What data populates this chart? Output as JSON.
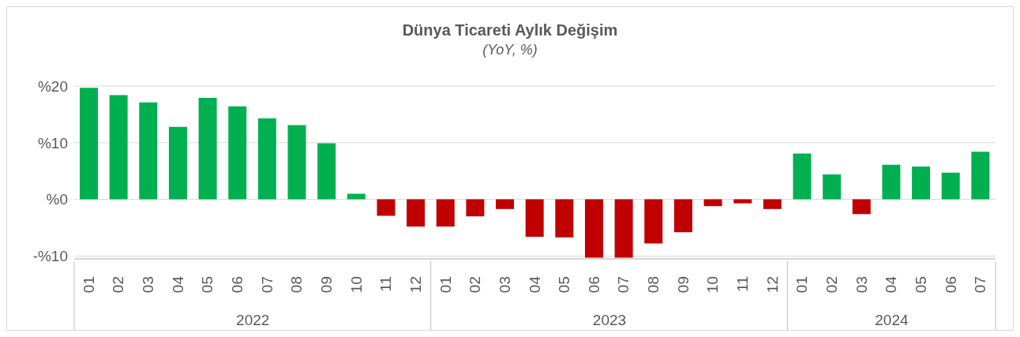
{
  "chart_data": {
    "type": "bar",
    "title": "Dünya Ticareti Aylık Değişim",
    "subtitle": "(YoY, %)",
    "categories": [
      "01",
      "02",
      "03",
      "04",
      "05",
      "06",
      "07",
      "08",
      "09",
      "10",
      "11",
      "12",
      "01",
      "02",
      "03",
      "04",
      "05",
      "06",
      "07",
      "08",
      "09",
      "10",
      "11",
      "12",
      "01",
      "02",
      "03",
      "04",
      "05",
      "06",
      "07"
    ],
    "values": [
      19.7,
      18.4,
      17.1,
      12.8,
      17.9,
      16.4,
      14.3,
      13.1,
      9.9,
      1.0,
      -2.9,
      -4.8,
      -4.8,
      -3.0,
      -1.7,
      -6.6,
      -6.7,
      -10.3,
      -10.3,
      -7.8,
      -5.8,
      -1.2,
      -0.7,
      -1.7,
      8.1,
      4.4,
      -2.6,
      6.1,
      5.8,
      4.7,
      8.4
    ],
    "colors": [
      "#00b050",
      "#00b050",
      "#00b050",
      "#00b050",
      "#00b050",
      "#00b050",
      "#00b050",
      "#00b050",
      "#00b050",
      "#00b050",
      "#c00000",
      "#c00000",
      "#c00000",
      "#c00000",
      "#c00000",
      "#c00000",
      "#c00000",
      "#c00000",
      "#c00000",
      "#c00000",
      "#c00000",
      "#c00000",
      "#c00000",
      "#c00000",
      "#00b050",
      "#00b050",
      "#c00000",
      "#00b050",
      "#00b050",
      "#00b050",
      "#00b050"
    ],
    "ylim": [
      -10.5,
      20
    ],
    "yticks": [
      {
        "value": -10,
        "label": "-%10"
      },
      {
        "value": 0,
        "label": "%0"
      },
      {
        "value": 10,
        "label": "%10"
      },
      {
        "value": 20,
        "label": "%20"
      }
    ],
    "grid": "y",
    "annotations": [
      "2022",
      "2023",
      "2024"
    ]
  }
}
